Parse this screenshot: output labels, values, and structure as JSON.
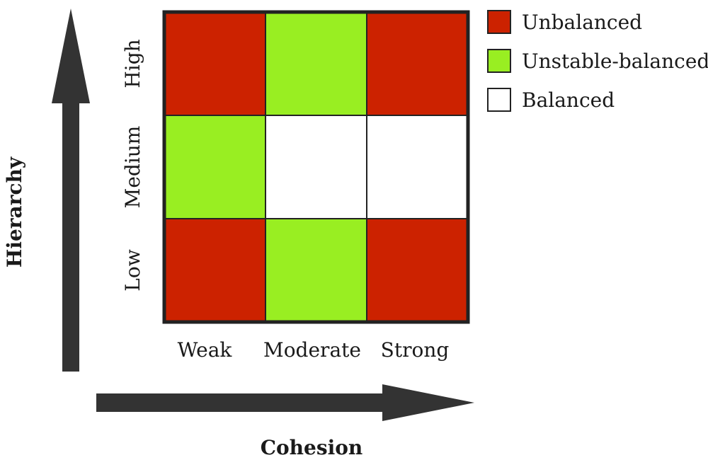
{
  "axes": {
    "y_title": "Hierarchy",
    "x_title": "Cohesion"
  },
  "rows": [
    "High",
    "Medium",
    "Low"
  ],
  "columns": [
    "Weak",
    "Moderate",
    "Strong"
  ],
  "cells": [
    [
      "unbalanced",
      "unstable",
      "unbalanced"
    ],
    [
      "unstable",
      "balanced",
      "balanced"
    ],
    [
      "unbalanced",
      "unstable",
      "unbalanced"
    ]
  ],
  "categories": {
    "unbalanced": {
      "label": "Unbalanced",
      "color": "#cc2200"
    },
    "unstable": {
      "label": "Unstable-balanced",
      "color": "#99ee22"
    },
    "balanced": {
      "label": "Balanced",
      "color": "#ffffff"
    }
  },
  "legend_order": [
    "unbalanced",
    "unstable",
    "balanced"
  ],
  "colors": {
    "arrow": "#333333",
    "grid_line": "#222222"
  }
}
